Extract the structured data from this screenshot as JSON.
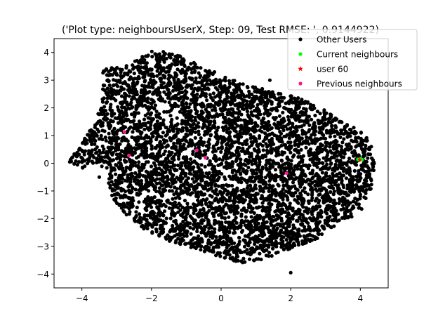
{
  "chart_data": {
    "type": "scatter",
    "title": "('Plot type: neighboursUserX, Step: 09, Test RMSE: ', 0.9144922)",
    "xlabel": "",
    "ylabel": "",
    "xlim": [
      -4.8,
      4.8
    ],
    "ylim": [
      -4.5,
      4.5
    ],
    "xticks": [
      -4,
      -2,
      0,
      2,
      4
    ],
    "yticks": [
      -4,
      -3,
      -2,
      -1,
      0,
      1,
      2,
      3,
      4
    ],
    "xtick_labels": [
      "−4",
      "−2",
      "0",
      "2",
      "4"
    ],
    "ytick_labels": [
      "−4",
      "−3",
      "−2",
      "−1",
      "0",
      "1",
      "2",
      "3",
      "4"
    ],
    "grid": false,
    "legend_position": "top-right",
    "series": [
      {
        "name": "Other Users",
        "marker": "circle",
        "color": "#000000",
        "cloud": {
          "outline": [
            [
              -4.4,
              0.0
            ],
            [
              -4.1,
              0.6
            ],
            [
              -3.6,
              1.5
            ],
            [
              -3.4,
              2.5
            ],
            [
              -3.4,
              3.4
            ],
            [
              -2.6,
              3.6
            ],
            [
              -2.2,
              3.9
            ],
            [
              -1.9,
              4.1
            ],
            [
              -1.4,
              4.0
            ],
            [
              -0.9,
              3.7
            ],
            [
              -0.4,
              3.4
            ],
            [
              0.2,
              3.1
            ],
            [
              0.8,
              2.8
            ],
            [
              1.5,
              2.6
            ],
            [
              2.1,
              2.4
            ],
            [
              2.6,
              2.2
            ],
            [
              3.0,
              1.9
            ],
            [
              3.4,
              1.6
            ],
            [
              3.8,
              1.3
            ],
            [
              4.2,
              1.0
            ],
            [
              4.4,
              0.4
            ],
            [
              4.4,
              -0.3
            ],
            [
              4.3,
              -1.0
            ],
            [
              4.1,
              -1.6
            ],
            [
              3.7,
              -2.0
            ],
            [
              3.2,
              -2.3
            ],
            [
              2.7,
              -2.8
            ],
            [
              2.2,
              -3.0
            ],
            [
              1.6,
              -3.3
            ],
            [
              1.1,
              -3.5
            ],
            [
              0.6,
              -3.6
            ],
            [
              0.0,
              -3.4
            ],
            [
              -0.7,
              -3.1
            ],
            [
              -1.3,
              -2.9
            ],
            [
              -1.8,
              -2.7
            ],
            [
              -2.2,
              -2.4
            ],
            [
              -2.7,
              -1.9
            ],
            [
              -3.1,
              -1.3
            ],
            [
              -3.3,
              -0.6
            ],
            [
              -3.2,
              -0.2
            ],
            [
              -3.7,
              0.0
            ],
            [
              -4.0,
              -0.2
            ]
          ],
          "count": 5200
        },
        "extra_points": [
          [
            2.0,
            -3.95
          ],
          [
            1.4,
            3.0
          ],
          [
            -4.35,
            0.05
          ],
          [
            -3.5,
            -0.5
          ]
        ]
      },
      {
        "name": "Current neighbours",
        "marker": "circle",
        "color": "#00ff00",
        "points": [
          [
            3.93,
            0.14
          ],
          [
            4.0,
            0.16
          ],
          [
            4.05,
            0.13
          ]
        ]
      },
      {
        "name": "user 60",
        "marker": "star",
        "color": "#ff0000",
        "points": [
          [
            3.98,
            0.13
          ]
        ]
      },
      {
        "name": "Previous neighbours",
        "marker": "circle",
        "color": "#ff1493",
        "points": [
          [
            -2.78,
            1.13
          ],
          [
            -2.65,
            0.28
          ],
          [
            -0.7,
            0.47
          ],
          [
            -0.45,
            0.2
          ],
          [
            1.88,
            -0.36
          ]
        ]
      }
    ]
  }
}
